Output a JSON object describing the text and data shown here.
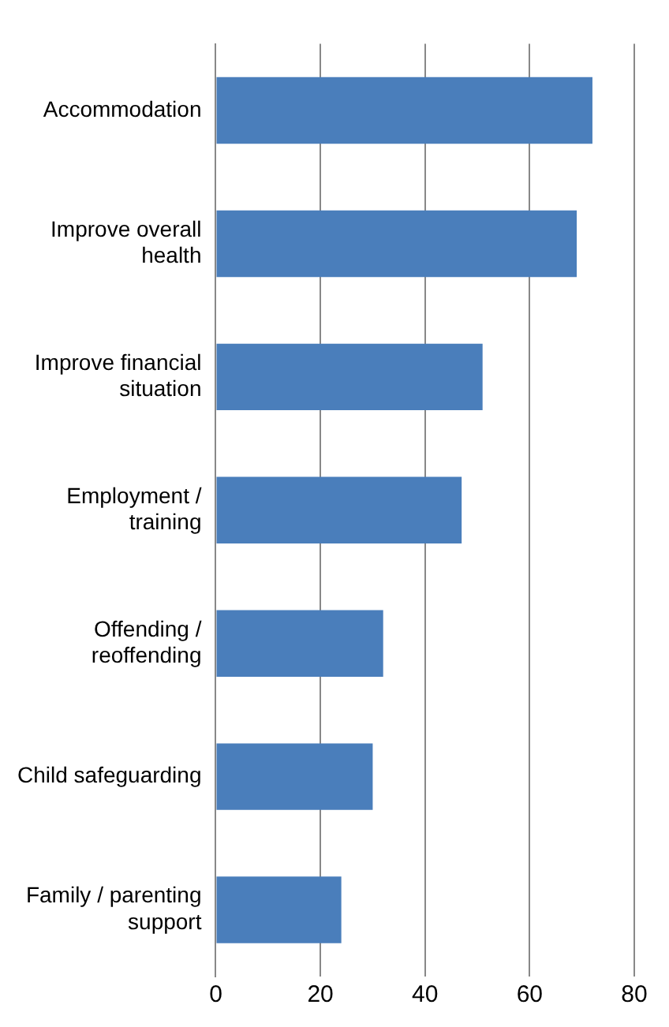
{
  "chart_data": {
    "type": "bar",
    "orientation": "horizontal",
    "categories": [
      "Accommodation",
      "Improve overall health",
      "Improve financial situation",
      "Employment / training",
      "Offending / reoffending",
      "Child safeguarding",
      "Family / parenting support"
    ],
    "values": [
      72,
      69,
      51,
      47,
      32,
      30,
      24
    ],
    "color": "#4a7ebb",
    "xlim": [
      0,
      80
    ],
    "xticks": [
      0,
      20,
      40,
      60,
      80
    ],
    "grid": "x",
    "legend": false
  }
}
